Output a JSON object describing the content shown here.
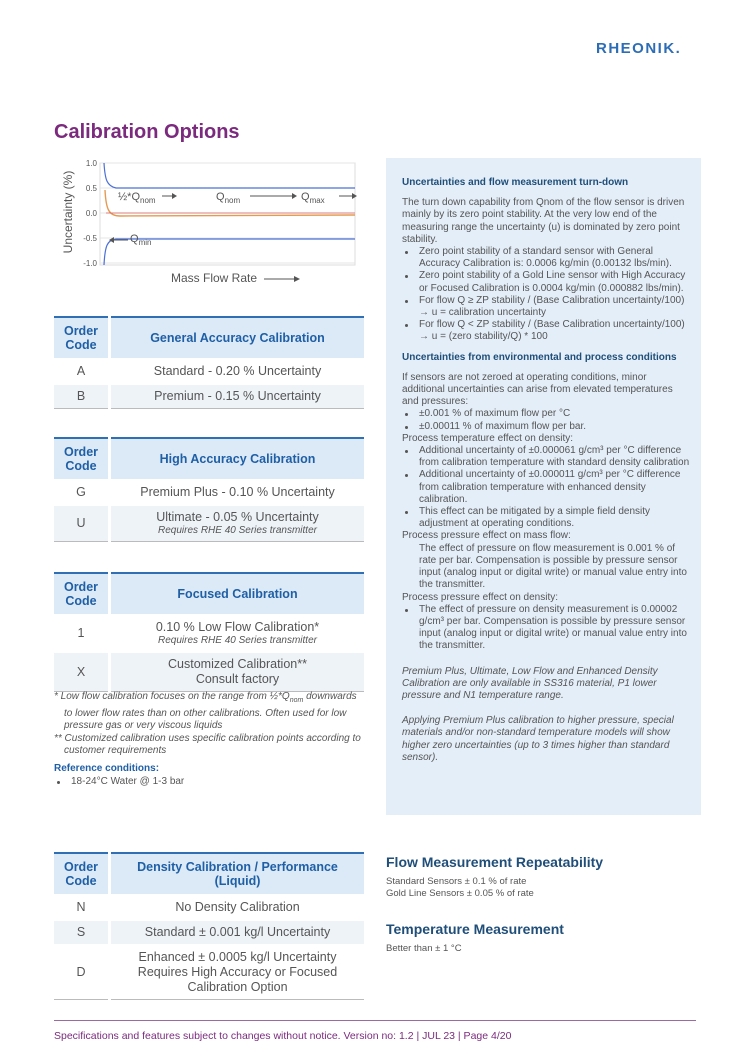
{
  "header": {
    "logo": "RHEONIK."
  },
  "title": "Calibration Options",
  "chart": {
    "y_axis_label": "Uncertainty (%)",
    "x_axis_label": "Mass Flow Rate",
    "yticks": [
      {
        "value": 1,
        "label": "1.0"
      },
      {
        "value": 0.5,
        "label": "0.5"
      },
      {
        "value": 0,
        "label": "0.0"
      },
      {
        "value": -0.5,
        "label": "-0.5"
      },
      {
        "value": -1,
        "label": "-1.0"
      }
    ],
    "annotations": [
      {
        "text": "½*Q",
        "sub": "nom"
      },
      {
        "text": "Q",
        "sub": "nom"
      },
      {
        "text": "Q",
        "sub": "max"
      },
      {
        "text": "Q",
        "sub": "min"
      }
    ]
  },
  "tables": [
    {
      "col1": "Order Code",
      "col2": "General Accuracy Calibration",
      "rows": [
        {
          "code": "A",
          "text": "Standard - 0.20 % Uncertainty"
        },
        {
          "code": "B",
          "text": "Premium - 0.15 % Uncertainty"
        }
      ]
    },
    {
      "col1": "Order Code",
      "col2": "High Accuracy Calibration",
      "rows": [
        {
          "code": "G",
          "text": "Premium Plus - 0.10 % Uncertainty"
        },
        {
          "code": "U",
          "text": "Ultimate - 0.05 % Uncertainty",
          "note": "Requires RHE 40 Series transmitter"
        }
      ]
    },
    {
      "col1": "Order Code",
      "col2": "Focused Calibration",
      "rows": [
        {
          "code": "1",
          "text": "0.10 % Low Flow Calibration*",
          "note": "Requires RHE 40 Series transmitter"
        },
        {
          "code": "X",
          "text": "Customized Calibration**",
          "text2": "Consult factory"
        }
      ]
    },
    {
      "col1": "Order Code",
      "col2": "Density Calibration / Performance (Liquid)",
      "rows": [
        {
          "code": "N",
          "text": "No Density Calibration"
        },
        {
          "code": "S",
          "text": "Standard ± 0.001 kg/l Uncertainty"
        },
        {
          "code": "D",
          "text": "Enhanced ± 0.0005 kg/l Uncertainty Requires High Accuracy or Focused Calibration Option"
        }
      ]
    }
  ],
  "footnotes": [
    {
      "pre": "* Low flow calibration focuses on the range from ½*Q",
      "sub": "nom",
      "post": " downwards to lower flow rates than on other calibrations. Often used for low pressure gas or very viscous liquids"
    },
    {
      "pre": "** Customized calibration uses specific calibration points according to customer requirements"
    }
  ],
  "reference": {
    "heading": "Reference conditions:",
    "items": [
      "18-24°C Water @ 1-3 bar"
    ]
  },
  "info_box": [
    {
      "style": "h",
      "text": "Uncertainties and flow measurement turn-down"
    },
    {
      "style": "p",
      "text": "The turn down capability from Qnom of the flow sensor is driven mainly by its zero point stability. At the very low end of the measuring range the uncertainty (u) is dominated by zero point stability."
    },
    {
      "style": "li",
      "text": "Zero point stability of a standard sensor with General Accuracy Calibration is: 0.0006 kg/min (0.00132 lbs/min)."
    },
    {
      "style": "li",
      "text": "Zero point stability of a Gold Line sensor with High Accuracy or Focused Calibration is 0.0004 kg/min (0.000882 lbs/min)."
    },
    {
      "style": "li",
      "text": "For flow Q ≥ ZP stability / (Base Calibration uncertainty/100) → u = calibration uncertainty"
    },
    {
      "style": "li",
      "text": "For flow Q < ZP stability / (Base Calibration uncertainty/100) → u = (zero stability/Q) * 100"
    },
    {
      "style": "h",
      "text": "Uncertainties from environmental and process conditions"
    },
    {
      "style": "p",
      "text": "If sensors are not zeroed at operating conditions, minor additional uncertainties can arise from elevated temperatures and pressures:"
    },
    {
      "style": "li",
      "text": "±0.001 % of maximum flow per °C"
    },
    {
      "style": "li",
      "text": "±0.00011 % of maximum flow per bar."
    },
    {
      "style": "p0",
      "text": "Process temperature effect on density:"
    },
    {
      "style": "li",
      "text": "Additional uncertainty of ±0.000061 g/cm³ per °C difference from calibration temperature with standard density calibration"
    },
    {
      "style": "li",
      "text": "Additional uncertainty of ±0.000011 g/cm³ per °C difference from calibration temperature with enhanced density calibration."
    },
    {
      "style": "li",
      "text": "This effect can be mitigated by a simple field density adjustment at operating conditions."
    },
    {
      "style": "p0",
      "text": "Process pressure effect on mass flow:"
    },
    {
      "style": "ind",
      "text": "The effect of pressure on flow measurement is 0.001 % of rate per bar. Compensation is possible by pressure sensor input (analog input or digital write) or manual value entry into the transmitter."
    },
    {
      "style": "p0",
      "text": "Process pressure effect on density:"
    },
    {
      "style": "li",
      "text": "The effect of pressure on density measurement is 0.00002 g/cm³ per bar. Compensation is possible by pressure sensor input (analog input or digital write) or manual value entry into the transmitter."
    },
    {
      "style": "it",
      "text": "Premium Plus, Ultimate, Low Flow and Enhanced Density Calibration are only available in SS316 material, P1 lower pressure and N1 temperature range."
    },
    {
      "style": "it",
      "text": "Applying Premium Plus calibration to higher pressure, special materials and/or non-standard temperature models will show higher zero uncertainties (up to 3 times higher than standard sensor)."
    }
  ],
  "repeatability": {
    "heading": "Flow Measurement Repeatability",
    "lines": [
      "Standard Sensors ± 0.1 % of rate",
      "Gold Line Sensors ± 0.05 % of rate"
    ]
  },
  "temperature": {
    "heading": "Temperature Measurement",
    "lines": [
      "Better than ± 1 °C"
    ]
  },
  "footer": "Specifications and features subject to changes without notice. Version no:  1.2 | JUL 23 | Page 4/20"
}
